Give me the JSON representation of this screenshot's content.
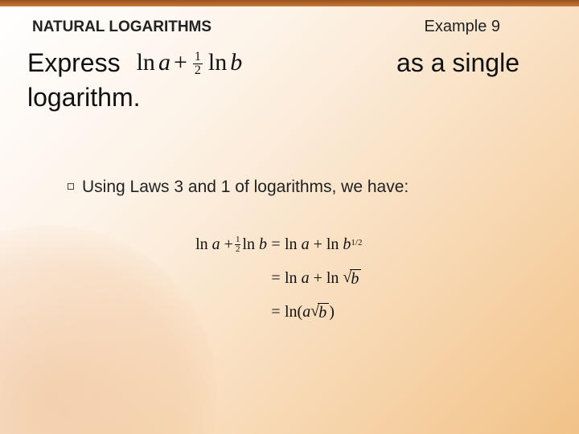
{
  "colors": {
    "topbar_from": "#9a501f",
    "topbar_to": "#c87838",
    "bg_grad_stops": [
      "#ffffff",
      "#fdf3e8",
      "#f9dfc0",
      "#f2c288"
    ],
    "glow_color": "rgba(230,160,100,0.35)",
    "text": "#222"
  },
  "fonts": {
    "body": "Arial, sans-serif",
    "math": "\"Times New Roman\", Times, serif",
    "title_size_pt": 14,
    "question_size_pt": 24,
    "bullet_size_pt": 16,
    "work_size_pt": 15
  },
  "header": {
    "section_title": "NATURAL LOGARITHMS",
    "example_label": "Example 9"
  },
  "question": {
    "lead": "Express",
    "expr": {
      "ln1": "ln",
      "a": "a",
      "plus": "+",
      "frac_num": "1",
      "frac_den": "2",
      "ln2": "ln",
      "b": "b"
    },
    "trail1": "as a single",
    "line2": "logarithm."
  },
  "bullet": {
    "text": "Using Laws 3 and 1 of logarithms, we have:"
  },
  "work": {
    "line1": {
      "lhs_ln1": "ln",
      "lhs_a": "a",
      "lhs_plus": "+",
      "lhs_frac_num": "1",
      "lhs_frac_den": "2",
      "lhs_ln2": "ln",
      "lhs_b": "b",
      "eq": "=",
      "rhs_ln1": "ln",
      "rhs_a": "a",
      "rhs_plus": "+",
      "rhs_ln2": "ln",
      "rhs_b": "b",
      "rhs_exp": "1/2"
    },
    "line2": {
      "eq": "=",
      "rhs_ln1": "ln",
      "rhs_a": "a",
      "rhs_plus": "+",
      "rhs_ln2": "ln",
      "rhs_b": "b"
    },
    "line3": {
      "eq": "=",
      "rhs_ln": "ln(",
      "rhs_a": "a",
      "rhs_b": "b",
      "rhs_close": ")"
    }
  }
}
